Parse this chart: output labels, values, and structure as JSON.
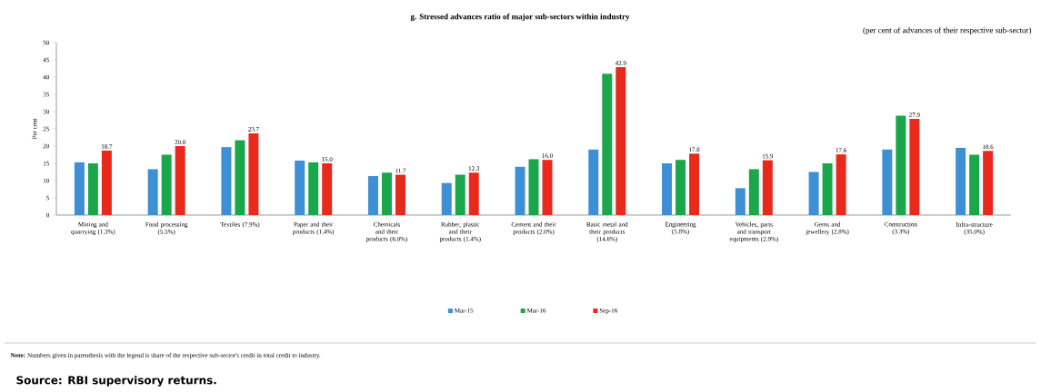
{
  "chart_data": {
    "type": "bar",
    "title": "g. Stressed advances ratio of major sub-sectors within industry",
    "subtitle": "(per cent of advances of their respective sub-sector)",
    "ylabel": "Per cent",
    "categories": [
      "Mining and quarrying (1.3%)",
      "Food processing (5.5%)",
      "Textiles (7.9%)",
      "Paper and their products (1.4%)",
      "Chemicals and their products (6.0%)",
      "Rubber, plastic and their products (1.4%)",
      "Cement and their products (2.0%)",
      "Basic metal and their products (14.6%)",
      "Engineering (5.8%)",
      "Vehicles, parts and transport equipments (2.9%)",
      "Gems and jewellery (2.8%)",
      "Construction (3.3%)",
      "Infra-structure (35.0%)"
    ],
    "series": [
      {
        "name": "Mar-15",
        "color": "#3d8fd6",
        "values": [
          15.3,
          13.3,
          19.7,
          15.8,
          11.3,
          9.3,
          14.0,
          19.0,
          15.0,
          7.8,
          12.5,
          19.0,
          19.5
        ]
      },
      {
        "name": "Mar-16",
        "color": "#1aa64a",
        "values": [
          15.0,
          17.5,
          21.7,
          15.3,
          12.3,
          11.7,
          16.2,
          41.0,
          16.0,
          13.3,
          15.0,
          28.8,
          17.5
        ]
      },
      {
        "name": "Sep-16",
        "color": "#e8291c",
        "values": [
          18.7,
          20.0,
          23.7,
          15.0,
          11.7,
          12.3,
          16.0,
          42.9,
          17.8,
          15.9,
          17.6,
          27.9,
          18.6
        ],
        "value_labels": [
          "18.7",
          "20.0",
          "23.7",
          "15.0",
          "11.7",
          "12.3",
          "16.0",
          "42.9",
          "17.8",
          "15.9",
          "17.6",
          "27.9",
          "18.6"
        ]
      }
    ],
    "ylim": [
      0,
      50
    ],
    "yticks": [
      0,
      5,
      10,
      15,
      20,
      25,
      30,
      35,
      40,
      45,
      50
    ],
    "grid": false,
    "legend": "bottom",
    "annotations": [
      "**Note:** Numbers given in parenthesis with the legend is share of the respective sub-sector's credit in total credit to industry.",
      "Source: RBI supervisory returns."
    ]
  }
}
